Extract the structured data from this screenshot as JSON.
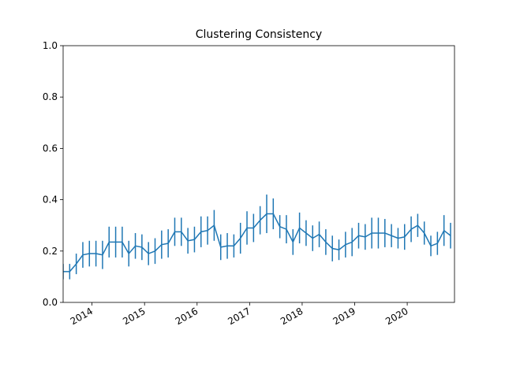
{
  "chart_data": {
    "type": "errorbar-line",
    "title": "Clustering Consistency",
    "color": "#1f77b4",
    "x": [
      2013.45,
      2013.575,
      2013.7,
      2013.825,
      2013.95,
      2014.075,
      2014.2,
      2014.325,
      2014.45,
      2014.575,
      2014.7,
      2014.825,
      2014.95,
      2015.075,
      2015.2,
      2015.325,
      2015.45,
      2015.575,
      2015.7,
      2015.825,
      2015.95,
      2016.075,
      2016.2,
      2016.325,
      2016.45,
      2016.575,
      2016.7,
      2016.825,
      2016.95,
      2017.075,
      2017.2,
      2017.325,
      2017.45,
      2017.575,
      2017.7,
      2017.825,
      2017.95,
      2018.075,
      2018.2,
      2018.325,
      2018.45,
      2018.575,
      2018.7,
      2018.825,
      2018.95,
      2019.075,
      2019.2,
      2019.325,
      2019.45,
      2019.575,
      2019.7,
      2019.825,
      2019.95,
      2020.075,
      2020.2,
      2020.325,
      2020.45,
      2020.575,
      2020.7,
      2020.825
    ],
    "values": [
      0.12,
      0.12,
      0.15,
      0.185,
      0.19,
      0.19,
      0.185,
      0.235,
      0.235,
      0.235,
      0.19,
      0.22,
      0.215,
      0.19,
      0.2,
      0.225,
      0.23,
      0.275,
      0.275,
      0.24,
      0.245,
      0.275,
      0.28,
      0.3,
      0.215,
      0.22,
      0.22,
      0.25,
      0.29,
      0.29,
      0.32,
      0.345,
      0.345,
      0.295,
      0.285,
      0.235,
      0.29,
      0.27,
      0.25,
      0.265,
      0.235,
      0.21,
      0.205,
      0.225,
      0.235,
      0.26,
      0.255,
      0.27,
      0.27,
      0.27,
      0.26,
      0.25,
      0.255,
      0.285,
      0.3,
      0.27,
      0.22,
      0.23,
      0.28,
      0.26
    ],
    "errors": [
      0.03,
      0.03,
      0.04,
      0.05,
      0.05,
      0.05,
      0.055,
      0.06,
      0.06,
      0.06,
      0.05,
      0.05,
      0.05,
      0.045,
      0.05,
      0.055,
      0.055,
      0.055,
      0.055,
      0.05,
      0.05,
      0.06,
      0.055,
      0.06,
      0.05,
      0.05,
      0.045,
      0.06,
      0.065,
      0.055,
      0.055,
      0.075,
      0.06,
      0.045,
      0.055,
      0.05,
      0.06,
      0.05,
      0.05,
      0.05,
      0.05,
      0.05,
      0.04,
      0.05,
      0.055,
      0.05,
      0.05,
      0.06,
      0.06,
      0.055,
      0.045,
      0.04,
      0.05,
      0.05,
      0.045,
      0.045,
      0.04,
      0.045,
      0.06,
      0.05
    ],
    "xlim": [
      2013.45,
      2020.9
    ],
    "xticks": [
      2014,
      2015,
      2016,
      2017,
      2018,
      2019,
      2020
    ],
    "ylim": [
      0,
      1
    ],
    "yticks": [
      {
        "value": 0,
        "label": "0.0"
      },
      0.2,
      0.4,
      0.6,
      0.8,
      {
        "value": 1,
        "label": "1.0"
      }
    ]
  }
}
